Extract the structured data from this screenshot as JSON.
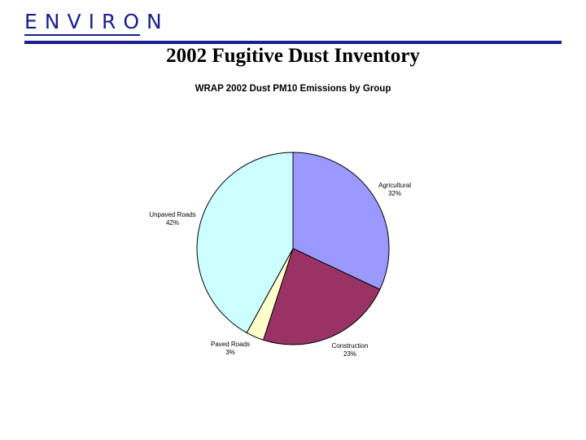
{
  "header": {
    "logo_text": "ENVIRON",
    "slide_title": "2002 Fugitive Dust Inventory"
  },
  "colors": {
    "brand": "#1a1f8c",
    "slice_outline": "#000000"
  },
  "chart_data": {
    "type": "pie",
    "title": "WRAP 2002 Dust PM10 Emissions by Group",
    "start_angle_deg": 0,
    "direction": "clockwise",
    "slices": [
      {
        "name": "Agricultural",
        "value": 32,
        "label": "32%",
        "color": "#9999ff"
      },
      {
        "name": "Construction",
        "value": 23,
        "label": "23%",
        "color": "#993366"
      },
      {
        "name": "Paved Roads",
        "value": 3,
        "label": "3%",
        "color": "#ffffcc"
      },
      {
        "name": "Unpaved Roads",
        "value": 42,
        "label": "42%",
        "color": "#ccffff"
      }
    ],
    "legend": "none",
    "data_labels": "category-and-percent-outside"
  }
}
